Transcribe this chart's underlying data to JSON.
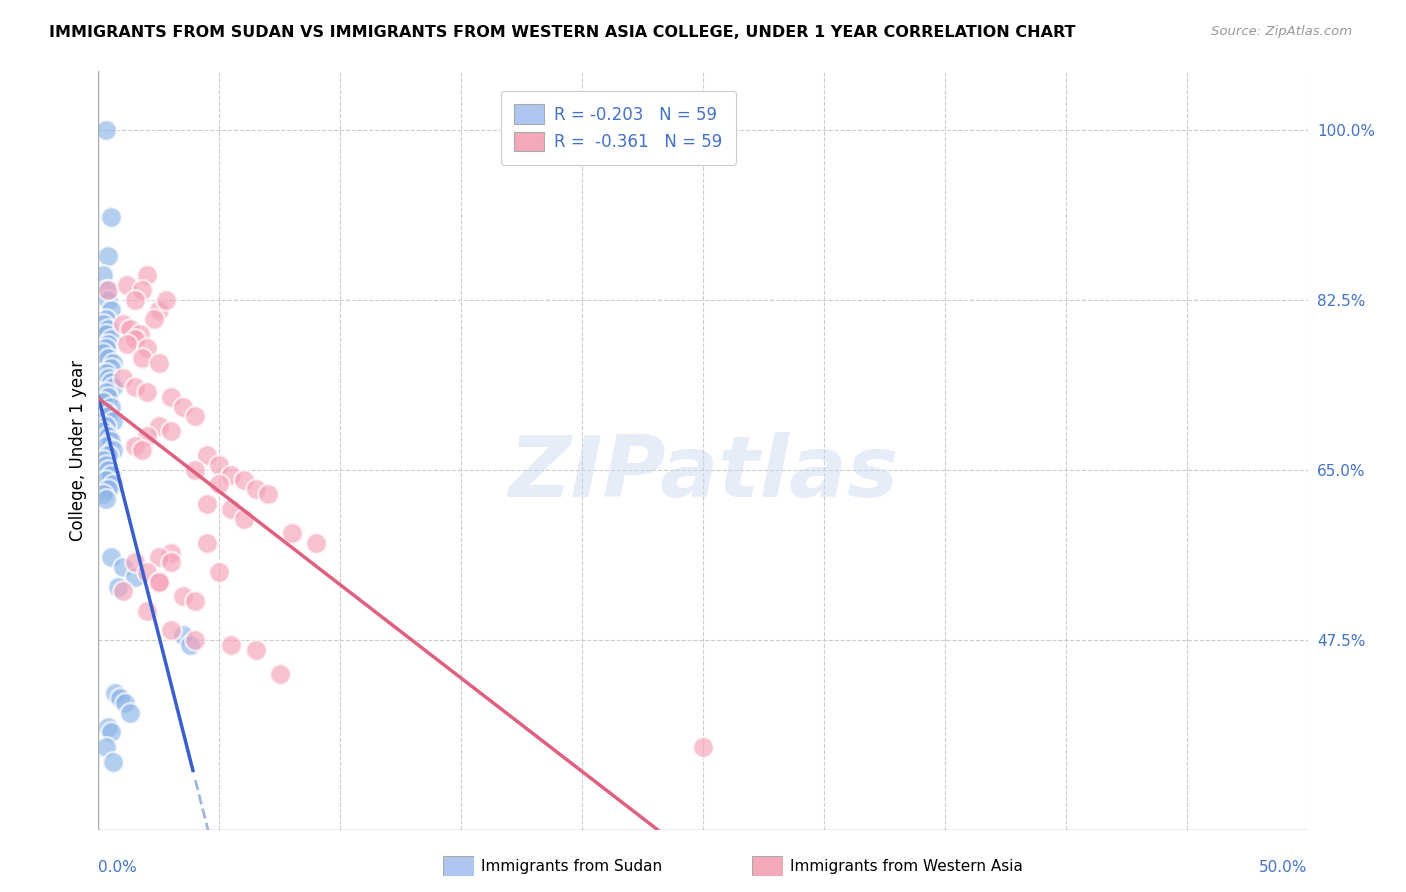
{
  "title": "IMMIGRANTS FROM SUDAN VS IMMIGRANTS FROM WESTERN ASIA COLLEGE, UNDER 1 YEAR CORRELATION CHART",
  "source": "Source: ZipAtlas.com",
  "ylabel": "College, Under 1 year",
  "right_yticks": [
    47.5,
    65.0,
    82.5,
    100.0
  ],
  "xlim": [
    0.0,
    50.0
  ],
  "ylim": [
    28.0,
    106.0
  ],
  "legend_label_1": "R = -0.203   N = 59",
  "legend_label_2": "R =  -0.361   N = 59",
  "sudan_color": "#8cb4e8",
  "western_asia_color": "#f5a0b8",
  "trend_blue": "#3a5fcd",
  "trend_pink": "#e06080",
  "trend_dashed": "#a0b8d8",
  "watermark": "ZIPatlas",
  "sudan_x": [
    0.3,
    0.5,
    0.4,
    0.2,
    0.3,
    0.4,
    0.5,
    0.3,
    0.2,
    0.4,
    0.3,
    0.5,
    0.4,
    0.3,
    0.2,
    0.4,
    0.6,
    0.5,
    0.3,
    0.4,
    0.5,
    0.6,
    0.3,
    0.4,
    0.2,
    0.5,
    0.3,
    0.4,
    0.6,
    0.3,
    0.2,
    0.4,
    0.5,
    0.3,
    0.6,
    0.4,
    0.2,
    0.3,
    0.4,
    0.5,
    0.3,
    0.6,
    0.4,
    0.2,
    0.3,
    0.5,
    1.0,
    1.5,
    0.8,
    3.5,
    3.8,
    0.7,
    0.9,
    1.1,
    1.3,
    0.4,
    0.5,
    0.3,
    0.6
  ],
  "sudan_y": [
    100.0,
    91.0,
    87.0,
    85.0,
    83.5,
    82.5,
    81.5,
    80.5,
    80.0,
    79.5,
    79.0,
    78.5,
    78.0,
    77.5,
    77.0,
    76.5,
    76.0,
    75.5,
    75.0,
    74.5,
    74.0,
    73.5,
    73.0,
    72.5,
    72.0,
    71.5,
    71.0,
    70.5,
    70.0,
    69.5,
    69.0,
    68.5,
    68.0,
    67.5,
    67.0,
    66.5,
    66.0,
    65.5,
    65.0,
    64.5,
    64.0,
    63.5,
    63.0,
    62.5,
    62.0,
    56.0,
    55.0,
    54.0,
    53.0,
    48.0,
    47.0,
    42.0,
    41.5,
    41.0,
    40.0,
    38.5,
    38.0,
    36.5,
    35.0
  ],
  "western_asia_x": [
    0.4,
    1.2,
    2.0,
    1.8,
    1.5,
    2.5,
    2.3,
    1.0,
    1.3,
    1.7,
    2.8,
    1.5,
    1.2,
    2.0,
    1.8,
    2.5,
    1.0,
    1.5,
    2.0,
    3.0,
    3.5,
    4.0,
    2.5,
    3.0,
    2.0,
    1.5,
    1.8,
    4.5,
    5.0,
    4.0,
    5.5,
    6.0,
    5.0,
    6.5,
    7.0,
    4.5,
    5.5,
    6.0,
    8.0,
    9.0,
    3.0,
    2.5,
    1.5,
    2.0,
    2.5,
    1.0,
    3.5,
    4.0,
    2.0,
    3.0,
    2.5,
    4.5,
    5.0,
    3.0,
    4.0,
    5.5,
    6.5,
    7.5,
    25.0
  ],
  "western_asia_y": [
    83.5,
    84.0,
    85.0,
    83.5,
    82.5,
    81.5,
    80.5,
    80.0,
    79.5,
    79.0,
    82.5,
    78.5,
    78.0,
    77.5,
    76.5,
    76.0,
    74.5,
    73.5,
    73.0,
    72.5,
    71.5,
    70.5,
    69.5,
    69.0,
    68.5,
    67.5,
    67.0,
    66.5,
    65.5,
    65.0,
    64.5,
    64.0,
    63.5,
    63.0,
    62.5,
    61.5,
    61.0,
    60.0,
    58.5,
    57.5,
    56.5,
    56.0,
    55.5,
    54.5,
    53.5,
    52.5,
    52.0,
    51.5,
    50.5,
    55.5,
    53.5,
    57.5,
    54.5,
    48.5,
    47.5,
    47.0,
    46.5,
    44.0,
    36.5
  ],
  "x_ticks_count": 11,
  "bottom_left_label": "0.0%",
  "bottom_right_label": "50.0%"
}
